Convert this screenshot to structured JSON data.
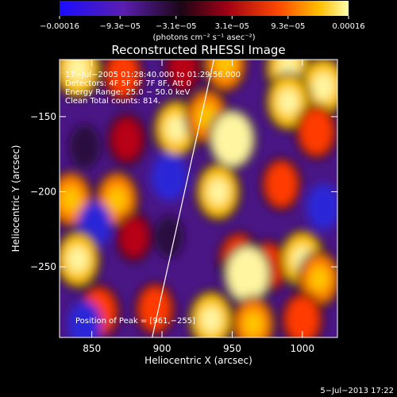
{
  "chart_data": {
    "type": "heatmap",
    "title": "Reconstructed RHESSI Image",
    "xlabel": "Heliocentric X (arcsec)",
    "ylabel": "Heliocentric Y (arcsec)",
    "xlim": [
      827,
      1025
    ],
    "ylim": [
      -297,
      -112
    ],
    "x_ticks": [
      850,
      900,
      950,
      1000
    ],
    "x_tick_labels": [
      "850",
      "900",
      "950",
      "1000"
    ],
    "y_ticks": [
      -150,
      -200,
      -250
    ],
    "y_tick_labels": [
      "−150",
      "−200",
      "−250"
    ],
    "colorbar": {
      "range": [
        -0.00016,
        0.00016
      ],
      "tick_values": [
        -0.00016,
        -9.3e-05,
        -3.1e-05,
        3.1e-05,
        9.3e-05,
        0.00016
      ],
      "tick_labels": [
        "−0.00016",
        "−9.3e−05",
        "−3.1e−05",
        "3.1e−05",
        "9.3e−05",
        "0.00016"
      ],
      "unit_label": "(photons cm⁻² s⁻¹ asec⁻²)"
    },
    "annotations": [
      "17−Jul−2005 01:28:40.000 to 01:29:56.000",
      "Detectors: 4F 5F 6F 7F 8F, Att 0",
      "Energy Range: 25.0 − 50.0 keV",
      "Clean    Total counts: 814."
    ],
    "peak_label": "Position of Peak = [961,−255]",
    "peak": {
      "x": 961,
      "y": -255
    },
    "limb_line": [
      [
        893,
        -297
      ],
      [
        937,
        -112
      ]
    ],
    "grid": false,
    "blobs": [
      {
        "x": 840,
        "y": -118,
        "v": 0.9
      },
      {
        "x": 872,
        "y": -122,
        "v": 0.5
      },
      {
        "x": 915,
        "y": -118,
        "v": 0.3
      },
      {
        "x": 945,
        "y": -115,
        "v": 0.7
      },
      {
        "x": 990,
        "y": -118,
        "v": 0.85
      },
      {
        "x": 1015,
        "y": -130,
        "v": 0.9
      },
      {
        "x": 845,
        "y": -170,
        "v": -0.5
      },
      {
        "x": 875,
        "y": -165,
        "v": 0.4
      },
      {
        "x": 910,
        "y": -158,
        "v": 0.8
      },
      {
        "x": 932,
        "y": -150,
        "v": 0.7
      },
      {
        "x": 950,
        "y": -165,
        "v": 0.95
      },
      {
        "x": 990,
        "y": -140,
        "v": 0.8
      },
      {
        "x": 1010,
        "y": -160,
        "v": 0.6
      },
      {
        "x": 905,
        "y": -190,
        "v": -0.7
      },
      {
        "x": 835,
        "y": -205,
        "v": 0.7
      },
      {
        "x": 868,
        "y": -205,
        "v": 0.7
      },
      {
        "x": 852,
        "y": -222,
        "v": -0.6
      },
      {
        "x": 940,
        "y": -200,
        "v": 0.8
      },
      {
        "x": 985,
        "y": -195,
        "v": 0.5
      },
      {
        "x": 1015,
        "y": -210,
        "v": -0.6
      },
      {
        "x": 840,
        "y": -245,
        "v": 0.8
      },
      {
        "x": 880,
        "y": -230,
        "v": 0.3
      },
      {
        "x": 905,
        "y": -230,
        "v": -0.4
      },
      {
        "x": 955,
        "y": -245,
        "v": 0.6
      },
      {
        "x": 975,
        "y": -250,
        "v": 0.5
      },
      {
        "x": 1000,
        "y": -245,
        "v": 0.85
      },
      {
        "x": 1012,
        "y": -258,
        "v": 0.7
      },
      {
        "x": 855,
        "y": -280,
        "v": 0.6
      },
      {
        "x": 845,
        "y": -288,
        "v": -0.6
      },
      {
        "x": 895,
        "y": -278,
        "v": 0.5
      },
      {
        "x": 935,
        "y": -285,
        "v": 0.8
      },
      {
        "x": 961,
        "y": -255,
        "v": 1.0
      },
      {
        "x": 965,
        "y": -288,
        "v": 0.7
      },
      {
        "x": 1000,
        "y": -285,
        "v": 0.6
      }
    ]
  },
  "footer": {
    "timestamp": "5−Jul−2013 17:22"
  }
}
